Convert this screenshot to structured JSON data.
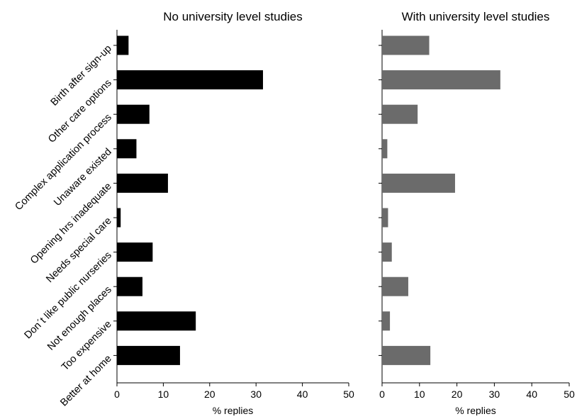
{
  "chart_data": {
    "type": "bar",
    "orientation": "horizontal",
    "categories": [
      "Birth after sign-up",
      "Other care options",
      "Complex application process",
      "Unaware existed",
      "Opening hrs inadequate",
      "Needs special care",
      "Don´t like public nurseries",
      "Not enough places",
      "Too expensive",
      "Better at home"
    ],
    "panels": [
      {
        "title": "No university level studies",
        "xlabel": "% replies",
        "xlim": [
          0,
          50
        ],
        "xticks": [
          "0",
          "10",
          "20",
          "30",
          "40",
          "50"
        ],
        "color": "#000000",
        "values": [
          2.5,
          31.5,
          7.0,
          4.2,
          11.0,
          0.8,
          7.7,
          5.5,
          17.0,
          13.6
        ]
      },
      {
        "title": "With university level studies",
        "xlabel": "% replies",
        "xlim": [
          0,
          50
        ],
        "xticks": [
          "0",
          "10",
          "20",
          "30",
          "40",
          "50"
        ],
        "color": "#6b6b6b",
        "values": [
          12.6,
          31.6,
          9.5,
          1.4,
          19.5,
          1.6,
          2.6,
          7.0,
          2.1,
          12.9
        ]
      }
    ],
    "grid": false,
    "legend": "none"
  }
}
